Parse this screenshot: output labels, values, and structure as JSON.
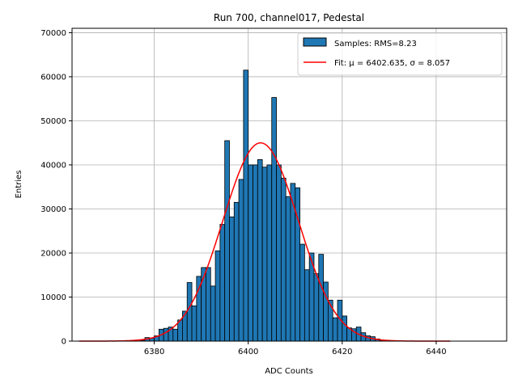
{
  "chart_data": {
    "type": "bar",
    "title": "Run 700, channel017, Pedestal",
    "xlabel": "ADC Counts",
    "ylabel": "Entries",
    "xlim": [
      6362.5,
      6455
    ],
    "ylim": [
      0,
      71000
    ],
    "xticks": [
      6380,
      6400,
      6420,
      6440
    ],
    "yticks": [
      0,
      10000,
      20000,
      30000,
      40000,
      50000,
      60000,
      70000
    ],
    "grid": true,
    "legend_position": "top-right",
    "bin_width": 1,
    "bins": [
      [
        6377,
        200
      ],
      [
        6378,
        800
      ],
      [
        6379,
        700
      ],
      [
        6380,
        1200
      ],
      [
        6381,
        2700
      ],
      [
        6382,
        2900
      ],
      [
        6383,
        3200
      ],
      [
        6384,
        2700
      ],
      [
        6385,
        4800
      ],
      [
        6386,
        6800
      ],
      [
        6387,
        13300
      ],
      [
        6388,
        8000
      ],
      [
        6389,
        14700
      ],
      [
        6390,
        16700
      ],
      [
        6391,
        16700
      ],
      [
        6392,
        12500
      ],
      [
        6393,
        20500
      ],
      [
        6394,
        26500
      ],
      [
        6395,
        45500
      ],
      [
        6396,
        28200
      ],
      [
        6397,
        31500
      ],
      [
        6398,
        36700
      ],
      [
        6399,
        61500
      ],
      [
        6400,
        40000
      ],
      [
        6401,
        40000
      ],
      [
        6402,
        41200
      ],
      [
        6403,
        39500
      ],
      [
        6404,
        40000
      ],
      [
        6405,
        55300
      ],
      [
        6406,
        40000
      ],
      [
        6407,
        37000
      ],
      [
        6408,
        32800
      ],
      [
        6409,
        35800
      ],
      [
        6410,
        34800
      ],
      [
        6411,
        22000
      ],
      [
        6412,
        16200
      ],
      [
        6413,
        20000
      ],
      [
        6414,
        15300
      ],
      [
        6415,
        19700
      ],
      [
        6416,
        13400
      ],
      [
        6417,
        9300
      ],
      [
        6418,
        5300
      ],
      [
        6419,
        9300
      ],
      [
        6420,
        5700
      ],
      [
        6421,
        3000
      ],
      [
        6422,
        2800
      ],
      [
        6423,
        3200
      ],
      [
        6424,
        1900
      ],
      [
        6425,
        1200
      ],
      [
        6426,
        1000
      ],
      [
        6427,
        500
      ],
      [
        6428,
        200
      ]
    ],
    "fit": {
      "mu": 6402.635,
      "sigma": 8.057,
      "amplitude": 45000,
      "x_range": [
        6364,
        6443
      ]
    },
    "series": [
      {
        "name": "Samples: RMS=8.23",
        "kind": "histogram",
        "color": "#1f77b4"
      },
      {
        "name": "Fit: μ = 6402.635, σ = 8.057",
        "kind": "line",
        "color": "#ff0000"
      }
    ]
  }
}
